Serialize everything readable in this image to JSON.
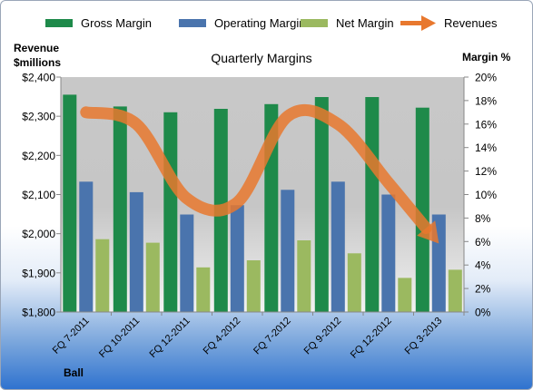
{
  "chart_data": {
    "type": "bar",
    "title": "Quarterly Margins",
    "left_axis_label_line1": "Revenue",
    "left_axis_label_line2": "$millions",
    "right_axis_label": "Margin %",
    "footer_label": "Ball",
    "categories": [
      "FQ 7-2011",
      "FQ 10-2011",
      "FQ 12-2011",
      "FQ 4-2012",
      "FQ 7-2012",
      "FQ 9-2012",
      "FQ 12-2012",
      "FQ 3-2013"
    ],
    "left_axis": {
      "min": 1800,
      "max": 2400,
      "ticks": [
        1800,
        1900,
        2000,
        2100,
        2200,
        2300,
        2400
      ],
      "tick_labels": [
        "$1,800",
        "$1,900",
        "$2,000",
        "$2,100",
        "$2,200",
        "$2,300",
        "$2,400"
      ]
    },
    "right_axis": {
      "min": 0,
      "max": 20,
      "ticks": [
        0,
        2,
        4,
        6,
        8,
        10,
        12,
        14,
        16,
        18,
        20
      ],
      "tick_labels": [
        "0%",
        "2%",
        "4%",
        "6%",
        "8%",
        "10%",
        "12%",
        "14%",
        "16%",
        "18%",
        "20%"
      ]
    },
    "series": [
      {
        "name": "Gross Margin",
        "kind": "bar",
        "axis": "right",
        "color": "#1e8a4a",
        "values": [
          18.5,
          17.5,
          17.0,
          17.3,
          17.7,
          18.3,
          18.3,
          17.4
        ]
      },
      {
        "name": "Operating Margin",
        "kind": "bar",
        "axis": "right",
        "color": "#4a74ad",
        "values": [
          11.1,
          10.2,
          8.3,
          9.1,
          10.4,
          11.1,
          10.0,
          8.3
        ]
      },
      {
        "name": "Net Margin",
        "kind": "bar",
        "axis": "right",
        "color": "#9bb960",
        "values": [
          6.2,
          5.9,
          3.8,
          4.4,
          6.1,
          5.0,
          2.9,
          3.6
        ]
      },
      {
        "name": "Revenues",
        "kind": "arrow",
        "axis": "left",
        "color": "#e8782e",
        "values": [
          2310,
          2280,
          2090,
          2080,
          2300,
          2280,
          2130,
          1975
        ]
      }
    ],
    "grid": false,
    "legend_position": "top"
  }
}
